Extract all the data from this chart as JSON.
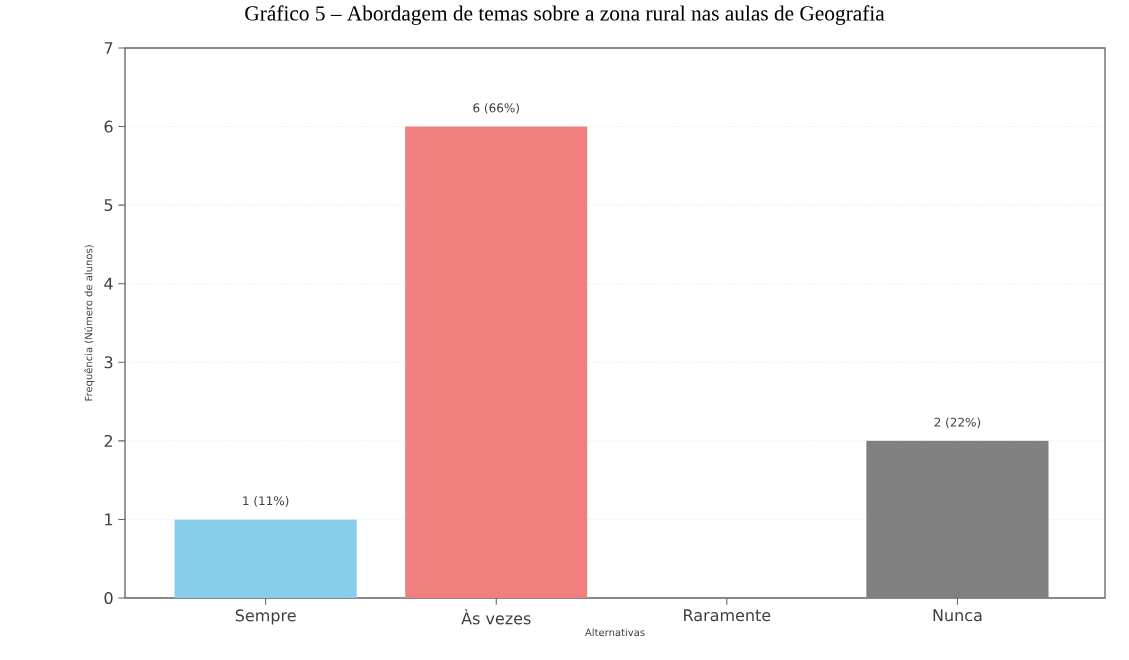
{
  "chart_data": {
    "type": "bar",
    "title": "Gráfico 5 – Abordagem de temas sobre a zona rural nas aulas de Geografia",
    "xlabel": "Alternativas",
    "ylabel": "Frequência (Número de alunos)",
    "categories": [
      "Sempre",
      "Às vezes",
      "Raramente",
      "Nunca"
    ],
    "values": [
      1,
      6,
      0,
      2
    ],
    "colors": [
      "#87ceeb",
      "#f08080",
      "#cccccc",
      "#808080"
    ],
    "value_labels": [
      "1 (11%)",
      "6 (66%)",
      null,
      "2 (22%)"
    ],
    "ylim": [
      0,
      7
    ],
    "yticks": [
      0,
      1,
      2,
      3,
      4,
      5,
      6,
      7
    ],
    "grid": "y"
  }
}
